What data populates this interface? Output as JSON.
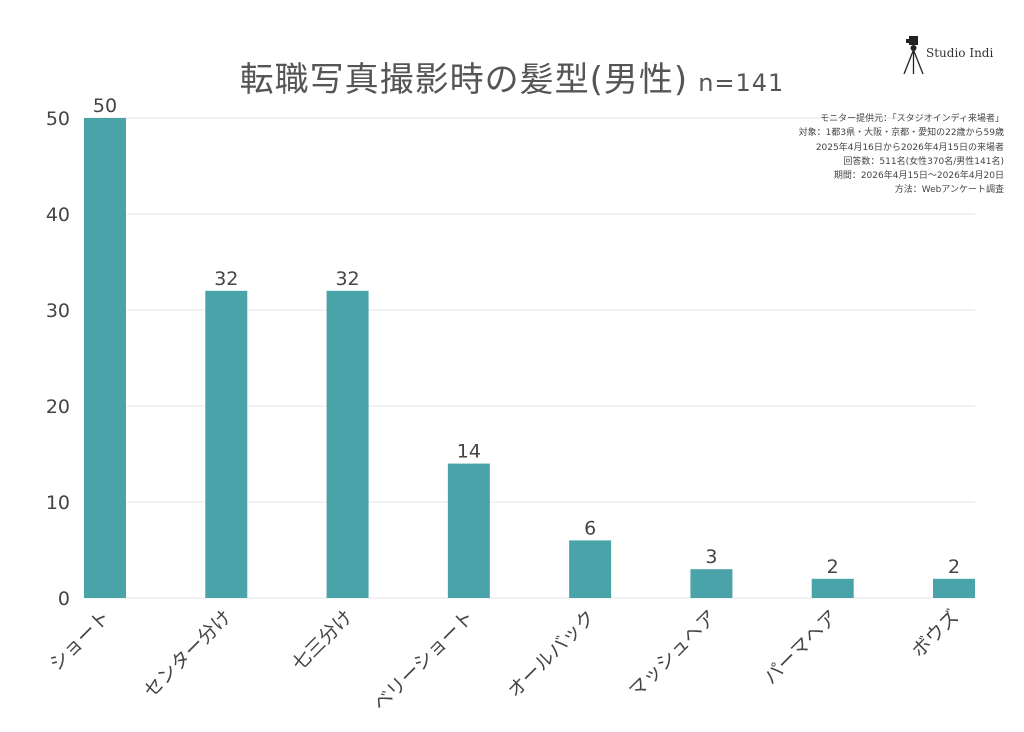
{
  "title": "転職写真撮影時の髪型(男性)",
  "sample_size": "n=141",
  "logo": {
    "text": "Studio Indi",
    "icon": "tripod-camera-icon"
  },
  "notes": [
    "モニター提供元：「スタジオインディ来場者」",
    "対象：1都3県・大阪・京都・愛知の22歳から59歳",
    "2025年4月16日から2026年4月15日の来場者",
    "回答数：511名(女性370名/男性141名)",
    "期間：2026年4月15日〜2026年4月20日",
    "方法：Webアンケート調査"
  ],
  "colors": {
    "bar": "#4aa3a8",
    "grid": "#e6e6e6",
    "text": "#444444"
  },
  "chart_data": {
    "type": "bar",
    "title": "転職写真撮影時の髪型(男性) n=141",
    "categories": [
      "ショート",
      "センター分け",
      "七三分け",
      "ベリーショート",
      "オールバック",
      "マッシュヘア",
      "パーマヘア",
      "ボウズ"
    ],
    "values": [
      50,
      32,
      32,
      14,
      6,
      3,
      2,
      2
    ],
    "ylim": [
      0,
      50
    ],
    "yticks": [
      0,
      10,
      20,
      30,
      40,
      50
    ],
    "grid": true,
    "legend": "none"
  }
}
